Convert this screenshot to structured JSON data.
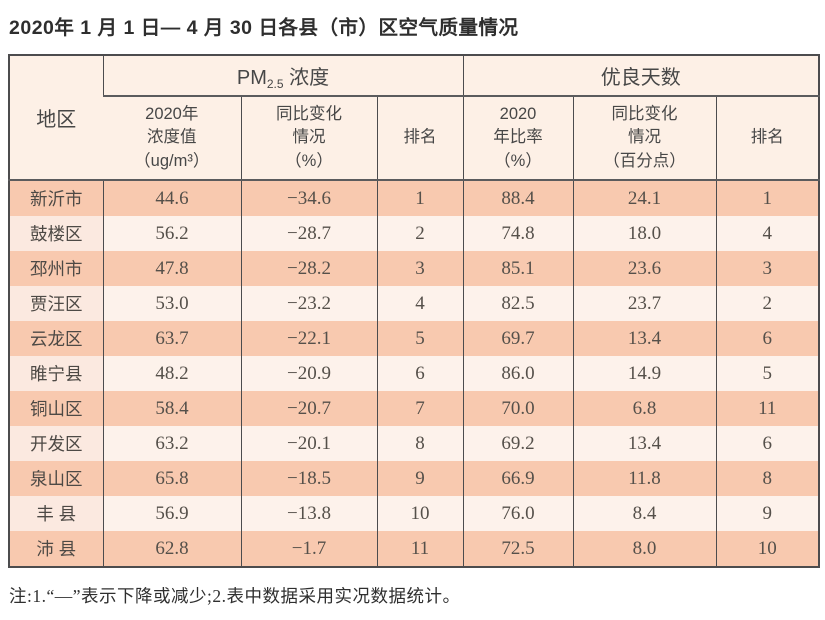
{
  "title": "2020年 1 月 1 日— 4 月 30 日各县（市）区空气质量情况",
  "table": {
    "region_header": "地区",
    "pm_group": {
      "prefix": "PM",
      "sub": "2.5",
      "suffix": " 浓度"
    },
    "good_group": "优良天数",
    "sub_headers": [
      "2020年\n浓度值\n（ug/m³）",
      "同比变化\n情况\n（%）",
      "排名",
      "2020\n年比率\n（%）",
      "同比变化\n情况\n（百分点）",
      "排名"
    ],
    "rows": [
      {
        "region": "新沂市",
        "pm_value": "44.6",
        "pm_change": "−34.6",
        "pm_rank": "1",
        "good_ratio": "88.4",
        "good_change": "24.1",
        "good_rank": "1"
      },
      {
        "region": "鼓楼区",
        "pm_value": "56.2",
        "pm_change": "−28.7",
        "pm_rank": "2",
        "good_ratio": "74.8",
        "good_change": "18.0",
        "good_rank": "4"
      },
      {
        "region": "邳州市",
        "pm_value": "47.8",
        "pm_change": "−28.2",
        "pm_rank": "3",
        "good_ratio": "85.1",
        "good_change": "23.6",
        "good_rank": "3"
      },
      {
        "region": "贾汪区",
        "pm_value": "53.0",
        "pm_change": "−23.2",
        "pm_rank": "4",
        "good_ratio": "82.5",
        "good_change": "23.7",
        "good_rank": "2"
      },
      {
        "region": "云龙区",
        "pm_value": "63.7",
        "pm_change": "−22.1",
        "pm_rank": "5",
        "good_ratio": "69.7",
        "good_change": "13.4",
        "good_rank": "6"
      },
      {
        "region": "睢宁县",
        "pm_value": "48.2",
        "pm_change": "−20.9",
        "pm_rank": "6",
        "good_ratio": "86.0",
        "good_change": "14.9",
        "good_rank": "5"
      },
      {
        "region": "铜山区",
        "pm_value": "58.4",
        "pm_change": "−20.7",
        "pm_rank": "7",
        "good_ratio": "70.0",
        "good_change": "6.8",
        "good_rank": "11"
      },
      {
        "region": "开发区",
        "pm_value": "63.2",
        "pm_change": "−20.1",
        "pm_rank": "8",
        "good_ratio": "69.2",
        "good_change": "13.4",
        "good_rank": "6"
      },
      {
        "region": "泉山区",
        "pm_value": "65.8",
        "pm_change": "−18.5",
        "pm_rank": "9",
        "good_ratio": "66.9",
        "good_change": "11.8",
        "good_rank": "8"
      },
      {
        "region": "丰 县",
        "pm_value": "56.9",
        "pm_change": "−13.8",
        "pm_rank": "10",
        "good_ratio": "76.0",
        "good_change": "8.4",
        "good_rank": "9"
      },
      {
        "region": "沛 县",
        "pm_value": "62.8",
        "pm_change": "−1.7",
        "pm_rank": "11",
        "good_ratio": "72.5",
        "good_change": "8.0",
        "good_rank": "10"
      }
    ]
  },
  "note": "注:1.“—”表示下降或减少;2.表中数据采用实况数据统计。",
  "colors": {
    "row_dark": "#f8c9af",
    "row_light": "#fdf2eb",
    "header_bg": "#fdf0e6",
    "border": "#4c4c4e"
  }
}
